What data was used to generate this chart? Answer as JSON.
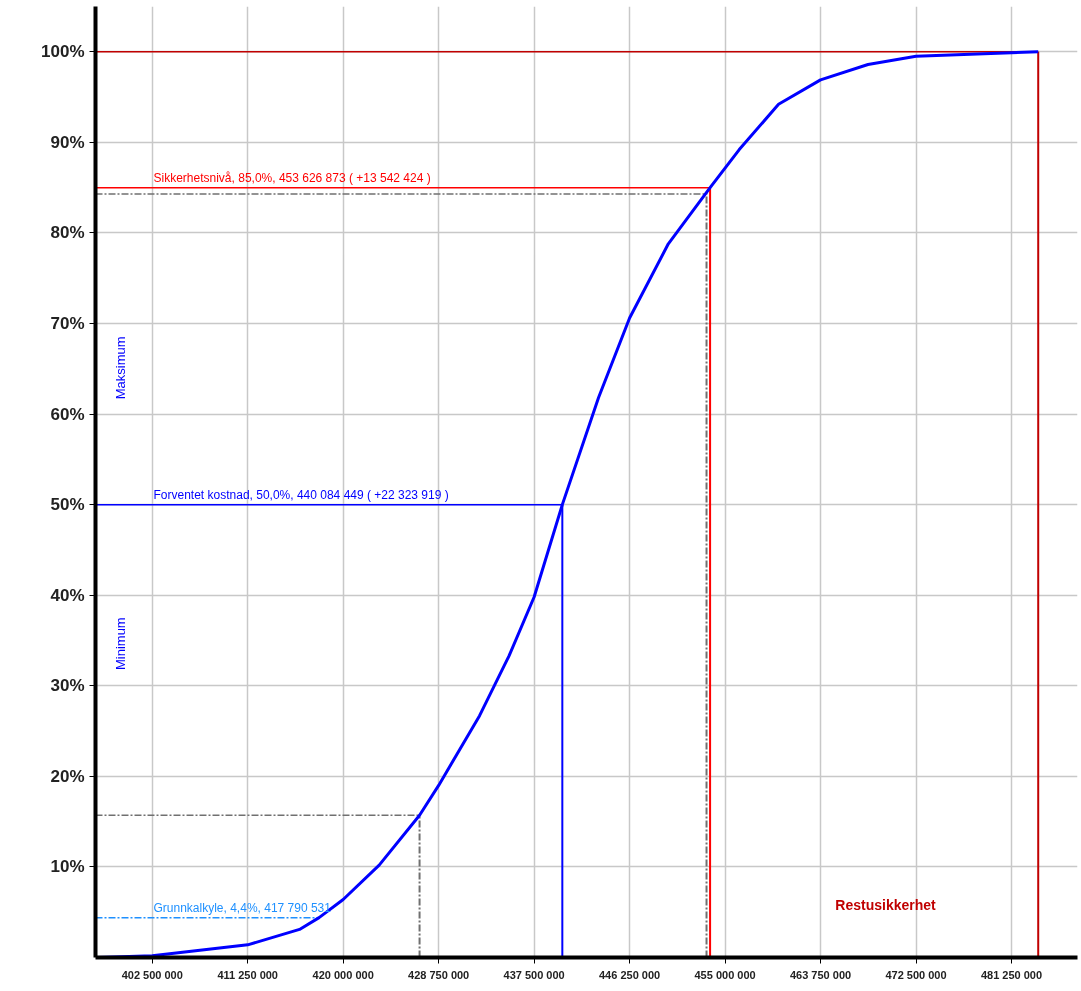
{
  "chart_data": {
    "type": "line",
    "x": [
      397500000,
      402500000,
      411250000,
      416000000,
      417790531,
      420000000,
      423300000,
      427000000,
      428750000,
      432500000,
      435200000,
      437500000,
      440084449,
      443400000,
      446250000,
      449800000,
      453626873,
      456300000,
      459900000,
      463750000,
      468100000,
      472500000,
      481250000,
      483700000
    ],
    "series": [
      {
        "color": "#0000ff",
        "values": [
          0,
          0.2,
          1.4,
          3.1,
          4.4,
          6.4,
          10.2,
          15.7,
          19,
          26.7,
          33.3,
          39.8,
          50,
          61.8,
          70.6,
          78.8,
          85,
          89.2,
          94.2,
          96.9,
          98.6,
          99.5,
          99.9,
          100
        ]
      }
    ],
    "xlim": [
      397300000,
      487300000
    ],
    "ylim": [
      0,
      105
    ],
    "xticks": [
      {
        "value": 402500000,
        "label": "402 500 000"
      },
      {
        "value": 411250000,
        "label": "411 250 000"
      },
      {
        "value": 420000000,
        "label": "420 000 000"
      },
      {
        "value": 428750000,
        "label": "428 750 000"
      },
      {
        "value": 437500000,
        "label": "437 500 000"
      },
      {
        "value": 446250000,
        "label": "446 250 000"
      },
      {
        "value": 455000000,
        "label": "455 000 000"
      },
      {
        "value": 463750000,
        "label": "463 750 000"
      },
      {
        "value": 472500000,
        "label": "472 500 000"
      },
      {
        "value": 481250000,
        "label": "481 250 000"
      }
    ],
    "yticks": [
      {
        "value": 10,
        "label": "10%"
      },
      {
        "value": 20,
        "label": "20%"
      },
      {
        "value": 30,
        "label": "30%"
      },
      {
        "value": 40,
        "label": "40%"
      },
      {
        "value": 50,
        "label": "50%"
      },
      {
        "value": 60,
        "label": "60%"
      },
      {
        "value": 70,
        "label": "70%"
      },
      {
        "value": 80,
        "label": "80%"
      },
      {
        "value": 90,
        "label": "90%"
      },
      {
        "value": 100,
        "label": "100%"
      }
    ],
    "grid": true,
    "marker": "none",
    "line_style": "solid",
    "ref_lines": [
      {
        "axis": "y",
        "value": 85,
        "label": "Sikkerhetsnivå, 85,0%, 453 626 873 ( +13 542 424 )",
        "color": "#ff0000",
        "line_style": "solid"
      },
      {
        "axis": "x",
        "value": 453626873,
        "label": null,
        "color": "#ff0000",
        "line_style": "solid"
      },
      {
        "axis": "y",
        "value": 50,
        "label": "Forventet kostnad, 50,0%, 440 084 449 ( +22 323 919 )",
        "color": "#0000ff",
        "line_style": "solid"
      },
      {
        "axis": "x",
        "value": 440084449,
        "label": null,
        "color": "#0000ff",
        "line_style": "solid"
      },
      {
        "axis": "y",
        "value": 4.4,
        "label": "Grunnkalkyle, 4,4%, 417 790 531",
        "color": "#1e90ff",
        "line_style": "dashed"
      },
      {
        "axis": "y",
        "value": 84.3,
        "label": null,
        "color": "#707070",
        "line_style": "dashed"
      },
      {
        "axis": "x",
        "value": 453300000,
        "label": null,
        "color": "#707070",
        "line_style": "dashed"
      },
      {
        "axis": "y",
        "value": 15.7,
        "label": null,
        "color": "#707070",
        "line_style": "dashed"
      },
      {
        "axis": "x",
        "value": 427000000,
        "label": null,
        "color": "#707070",
        "line_style": "dashed"
      },
      {
        "axis": "y",
        "value": 100,
        "label": null,
        "color": "#c00000",
        "line_style": "solid"
      },
      {
        "axis": "x",
        "value": 483700000,
        "label": null,
        "color": "#c00000",
        "line_style": "solid"
      }
    ],
    "annotations": [
      "Maksimum",
      "Minimum",
      "Restusikkerhet"
    ]
  }
}
